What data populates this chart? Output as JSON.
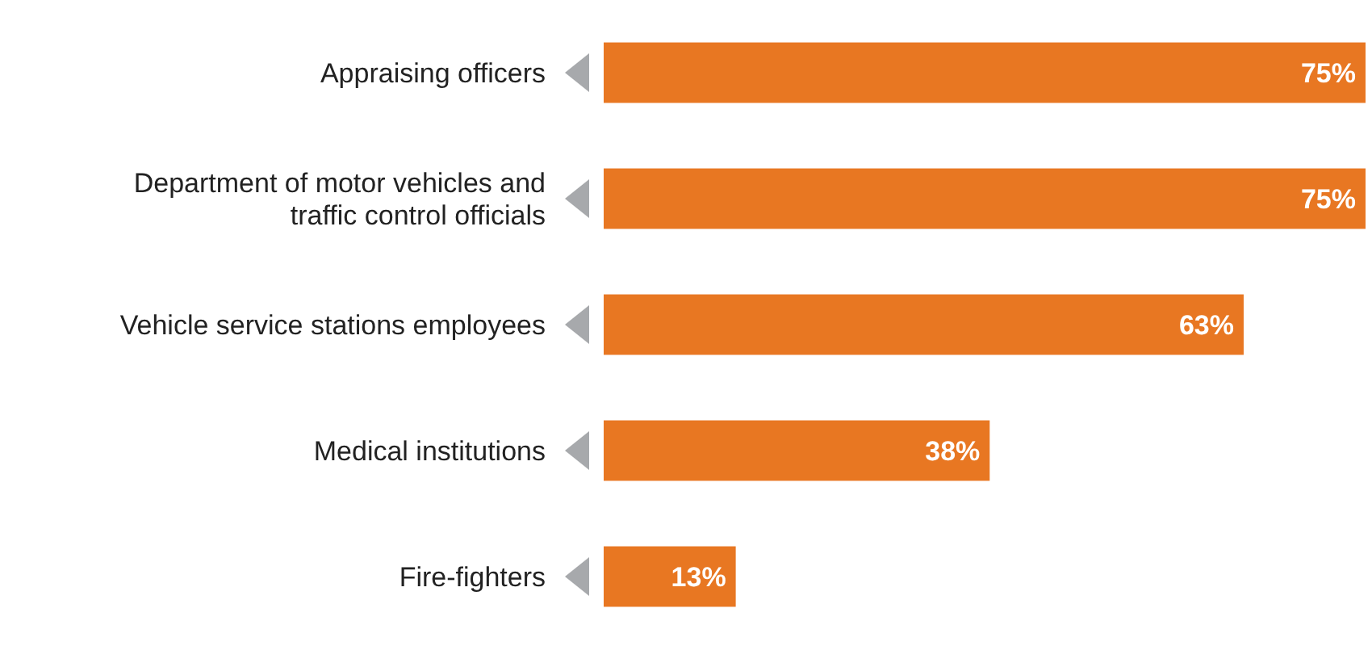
{
  "chart_data": {
    "type": "bar",
    "orientation": "horizontal",
    "categories": [
      "Appraising officers",
      "Department of motor vehicles and traffic control officials",
      "Vehicle service stations employees",
      "Medical institutions",
      "Fire-fighters"
    ],
    "values": [
      75,
      75,
      63,
      38,
      13
    ],
    "value_labels": [
      "75%",
      "75%",
      "63%",
      "38%",
      "13%"
    ],
    "color": "#e87722"
  }
}
